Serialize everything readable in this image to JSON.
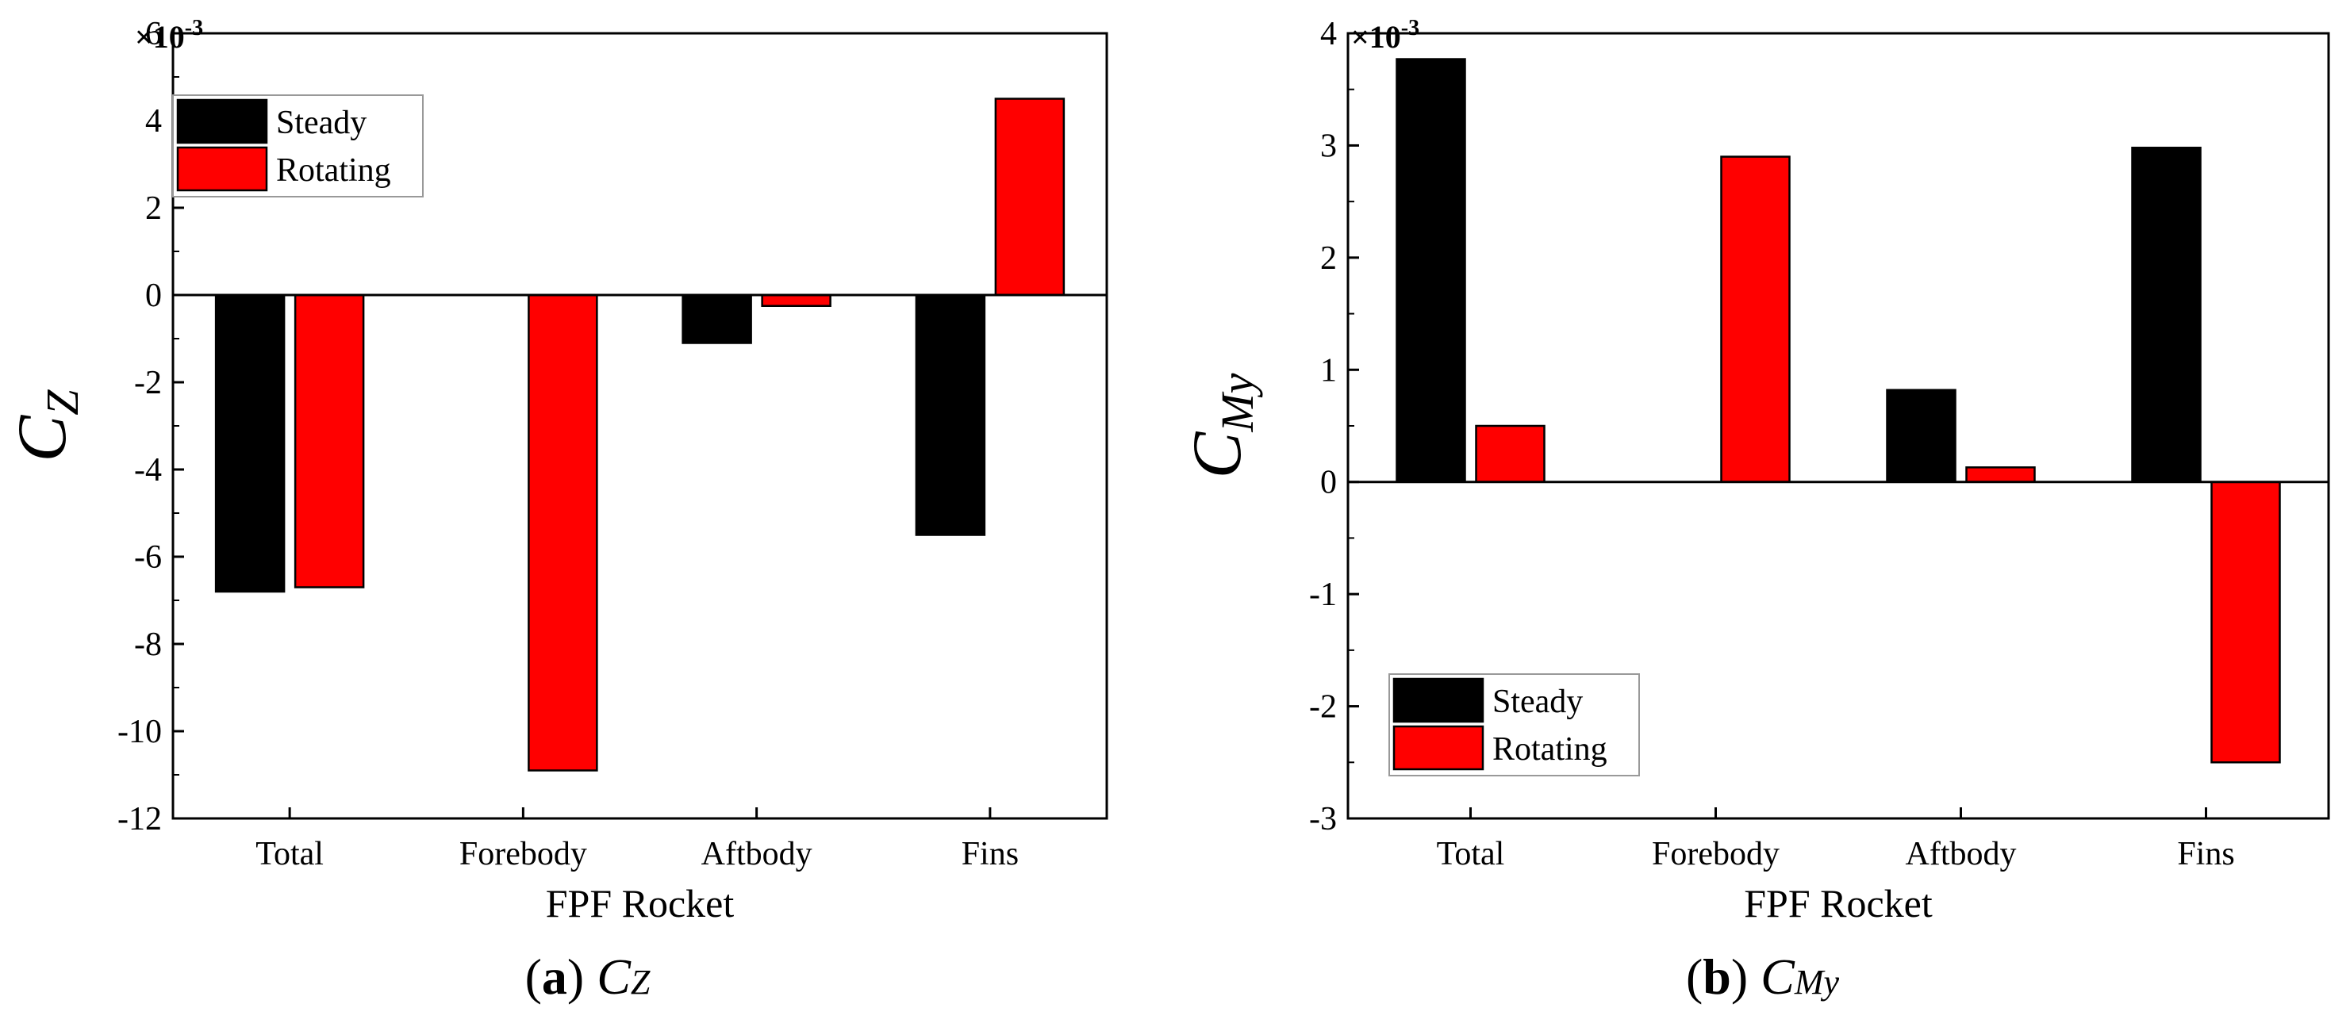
{
  "chart_data": [
    {
      "type": "bar",
      "categories": [
        "Total",
        "Forebody",
        "Aftbody",
        "Fins"
      ],
      "series": [
        {
          "name": "Steady",
          "color": "#000000",
          "values": [
            -6.8,
            0,
            -1.1,
            -5.5
          ]
        },
        {
          "name": "Rotating",
          "color": "#ff0000",
          "values": [
            -6.7,
            -10.9,
            -0.25,
            4.5
          ]
        }
      ],
      "ylim": [
        -12,
        6
      ],
      "yticks": [
        -12,
        -10,
        -8,
        -6,
        -4,
        -2,
        0,
        2,
        4,
        6
      ],
      "ytick_labels": [
        "-12",
        "-10",
        "-8",
        "-6",
        "-4",
        "-2",
        "0",
        "2",
        "4",
        "6"
      ],
      "scale_label": "×10",
      "scale_exp": "-3",
      "ylabel_main": "C",
      "ylabel_sub": "Z",
      "xlabel": "FPF Rocket",
      "legend_position": "top-left",
      "caption_letter": "a",
      "caption_main": "C",
      "caption_sub": "Z"
    },
    {
      "type": "bar",
      "categories": [
        "Total",
        "Forebody",
        "Aftbody",
        "Fins"
      ],
      "series": [
        {
          "name": "Steady",
          "color": "#000000",
          "values": [
            3.77,
            0,
            0.82,
            2.98
          ]
        },
        {
          "name": "Rotating",
          "color": "#ff0000",
          "values": [
            0.5,
            2.9,
            0.13,
            -2.5
          ]
        }
      ],
      "ylim": [
        -3,
        4
      ],
      "yticks": [
        -3,
        -2,
        -1,
        0,
        1,
        2,
        3,
        4
      ],
      "ytick_labels": [
        "-3",
        "-2",
        "-1",
        "0",
        "1",
        "2",
        "3",
        "4"
      ],
      "scale_label": "×10",
      "scale_exp": "-3",
      "ylabel_main": "C",
      "ylabel_sub": "My",
      "xlabel": "FPF Rocket",
      "legend_position": "bottom-left",
      "caption_letter": "b",
      "caption_main": "C",
      "caption_sub": "My"
    }
  ]
}
